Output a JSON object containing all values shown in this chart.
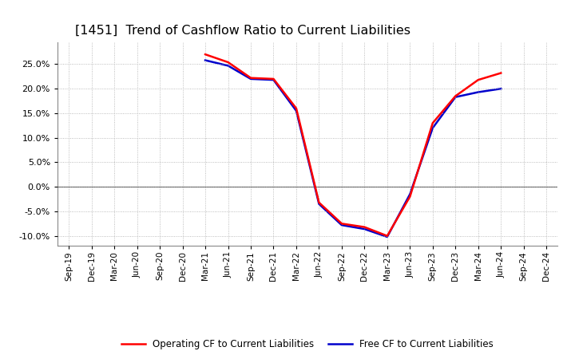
{
  "title": "[1451]  Trend of Cashflow Ratio to Current Liabilities",
  "title_fontsize": 11.5,
  "background_color": "#ffffff",
  "grid_color": "#aaaaaa",
  "x_labels": [
    "Sep-19",
    "Dec-19",
    "Mar-20",
    "Jun-20",
    "Sep-20",
    "Dec-20",
    "Mar-21",
    "Jun-21",
    "Sep-21",
    "Dec-21",
    "Mar-22",
    "Jun-22",
    "Sep-22",
    "Dec-22",
    "Mar-23",
    "Jun-23",
    "Sep-23",
    "Dec-23",
    "Mar-24",
    "Jun-24",
    "Sep-24",
    "Dec-24"
  ],
  "operating_cf": [
    null,
    null,
    null,
    null,
    null,
    null,
    0.27,
    0.254,
    0.222,
    0.22,
    0.16,
    -0.032,
    -0.075,
    -0.082,
    -0.1,
    -0.02,
    0.13,
    0.185,
    0.218,
    0.232,
    null,
    null
  ],
  "free_cf": [
    null,
    null,
    null,
    null,
    null,
    null,
    0.258,
    0.247,
    0.22,
    0.218,
    0.155,
    -0.035,
    -0.078,
    -0.086,
    -0.102,
    -0.015,
    0.12,
    0.183,
    0.193,
    0.2,
    null,
    null
  ],
  "ylim_min": -0.12,
  "ylim_max": 0.295,
  "yticks": [
    -0.1,
    -0.05,
    0.0,
    0.05,
    0.1,
    0.15,
    0.2,
    0.25
  ],
  "operating_color": "#ff0000",
  "free_color": "#0000cc",
  "legend_op": "Operating CF to Current Liabilities",
  "legend_free": "Free CF to Current Liabilities",
  "linewidth": 1.8
}
